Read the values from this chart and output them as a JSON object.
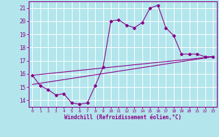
{
  "title": "",
  "xlabel": "Windchill (Refroidissement éolien,°C)",
  "ylabel": "",
  "bg_color": "#b3e5ec",
  "grid_color": "#ffffff",
  "line_color": "#880088",
  "xlim": [
    -0.5,
    23.5
  ],
  "ylim": [
    13.5,
    21.5
  ],
  "xticks": [
    0,
    1,
    2,
    3,
    4,
    5,
    6,
    7,
    8,
    9,
    10,
    11,
    12,
    13,
    14,
    15,
    16,
    17,
    18,
    19,
    20,
    21,
    22,
    23
  ],
  "yticks": [
    14,
    15,
    16,
    17,
    18,
    19,
    20,
    21
  ],
  "line1_x": [
    0,
    1,
    2,
    3,
    4,
    5,
    6,
    7,
    8,
    9,
    10,
    11,
    12,
    13,
    14,
    15,
    16,
    17,
    18,
    19,
    20,
    21,
    22,
    23
  ],
  "line1_y": [
    15.9,
    15.1,
    14.8,
    14.4,
    14.5,
    13.8,
    13.7,
    13.8,
    15.1,
    16.5,
    20.0,
    20.1,
    19.7,
    19.5,
    19.9,
    21.0,
    21.2,
    19.5,
    18.9,
    17.5,
    17.5,
    17.5,
    17.3,
    17.3
  ],
  "line2_x": [
    0,
    23
  ],
  "line2_y": [
    15.2,
    17.3
  ],
  "line3_x": [
    0,
    23
  ],
  "line3_y": [
    15.9,
    17.3
  ]
}
